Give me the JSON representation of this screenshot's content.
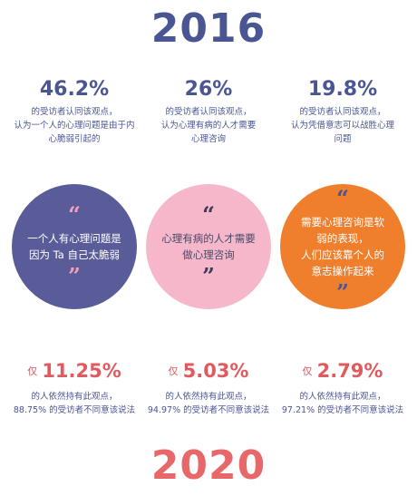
{
  "year_top": "2016",
  "year_bottom": "2020",
  "columns": [
    {
      "pct_2016": "46.2%",
      "desc_2016": [
        "的受访者认同该观点，",
        "认为一个人的心理问题是由于内",
        "心脆弱引起的"
      ],
      "quote_open": "“",
      "quote_close": "”",
      "quote": [
        "一个人有心理问题是",
        "因为 Ta 自己太脆弱"
      ],
      "prefix_2020": "仅",
      "pct_2020": "11.25%",
      "desc_2020": [
        "的人依然持有此观点，",
        "88.75% 的受访者不同意该说法"
      ]
    },
    {
      "pct_2016": "26%",
      "desc_2016": [
        "的受访者认同该观点，",
        "认为心理有病的人才需要",
        "心理咨询"
      ],
      "quote_open": "“",
      "quote_close": "”",
      "quote": [
        "心理有病的人才需要",
        "做心理咨询"
      ],
      "prefix_2020": "仅",
      "pct_2020": "5.03%",
      "desc_2020": [
        "的人依然持有此观点，",
        "94.97% 的受访者不同意该说法"
      ]
    },
    {
      "pct_2016": "19.8%",
      "desc_2016": [
        "的受访者认同该观点，",
        "认为凭借意志可以战胜心理",
        "问题"
      ],
      "quote_open": "“",
      "quote_close": "”",
      "quote": [
        "需要心理咨询是软",
        "弱的表现，",
        "人们应该靠个人的",
        "意志操作起来"
      ],
      "prefix_2020": "仅",
      "pct_2020": "2.79%",
      "desc_2020": [
        "的人依然持有此观点，",
        "97.21% 的受访者不同意该说法"
      ]
    }
  ],
  "colors": {
    "navy": "#4a5594",
    "red": "#e05a5e",
    "circle_blue": "#5a5c9a",
    "circle_pink": "#f5b7c9",
    "circle_orange": "#ef7f2d"
  }
}
